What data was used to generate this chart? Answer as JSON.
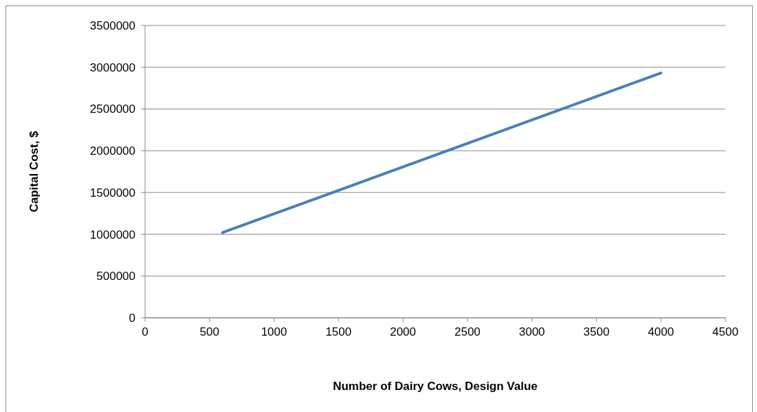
{
  "chart_data": {
    "type": "line",
    "xlabel": "Number of Dairy Cows, Design Value",
    "ylabel": "Capital Cost, $",
    "x": [
      600,
      4000
    ],
    "series": [
      {
        "color": "#4a7ebb",
        "values": [
          1020000,
          2930000
        ]
      }
    ],
    "xlim": [
      0,
      4500
    ],
    "xticks": [
      0,
      500,
      1000,
      1500,
      2000,
      2500,
      3000,
      3500,
      4000,
      4500
    ],
    "ylim": [
      0,
      3500000
    ],
    "yticks": [
      0,
      500000,
      1000000,
      1500000,
      2000000,
      2500000,
      3000000,
      3500000
    ],
    "grid": "y",
    "legend": false,
    "marker": "none",
    "line_style": "solid"
  }
}
